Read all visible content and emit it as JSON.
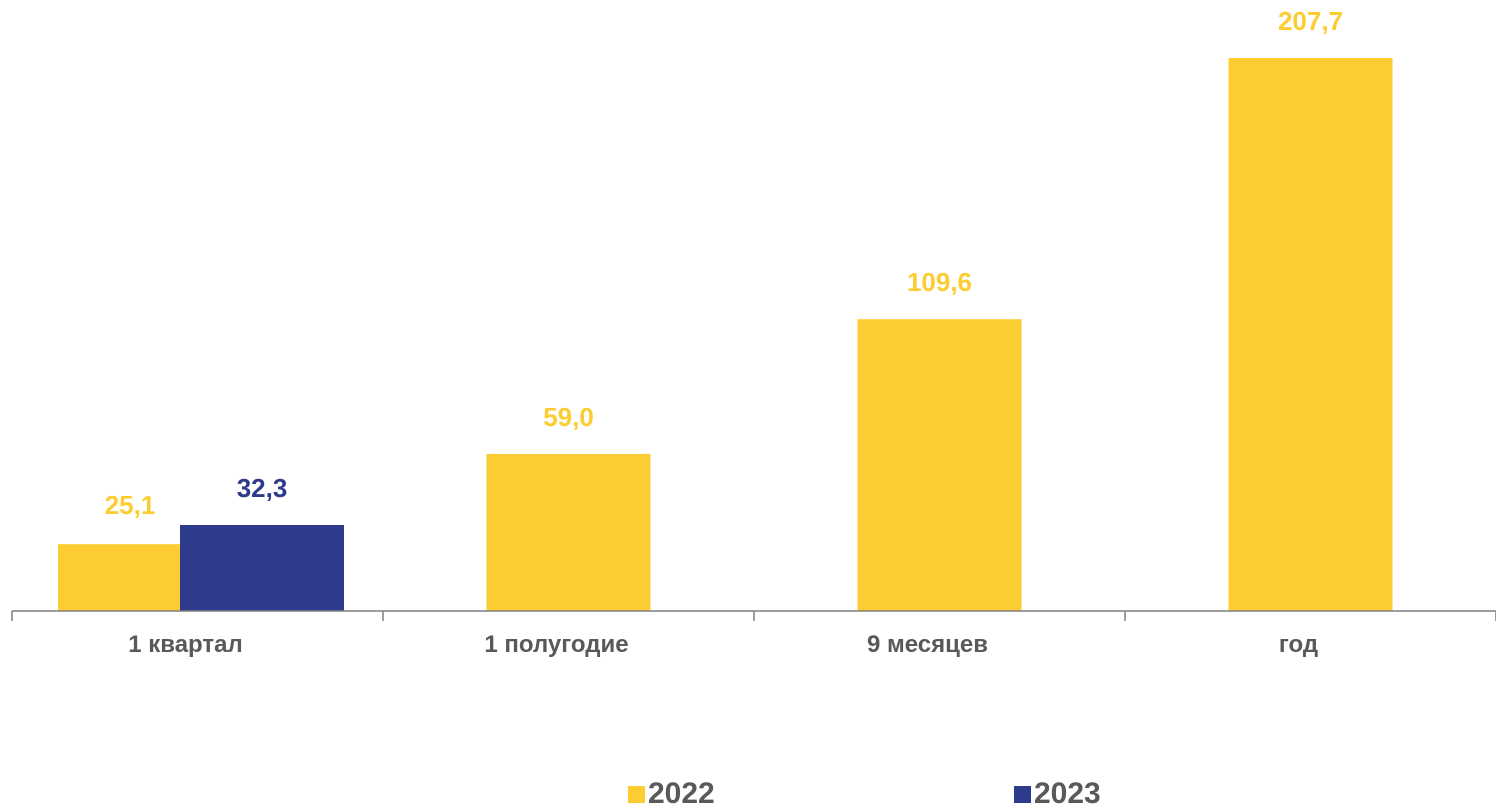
{
  "chart_data": {
    "type": "bar",
    "categories": [
      "1 квартал",
      "1 полугодие",
      "9 месяцев",
      "год"
    ],
    "series": [
      {
        "name": "2022",
        "color": "#FCCD33",
        "values": [
          25.1,
          59.0,
          109.6,
          207.7
        ],
        "labels": [
          "25,1",
          "59,0",
          "109,6",
          "207,7"
        ]
      },
      {
        "name": "2023",
        "color": "#2E3A8C",
        "values": [
          32.3,
          null,
          null,
          null
        ],
        "labels": [
          "32,3",
          "",
          "",
          ""
        ]
      }
    ],
    "title": "",
    "xlabel": "",
    "ylabel": "",
    "ylim": [
      0,
      207.7
    ],
    "grid": false,
    "legend": "bottom-center",
    "data_labels": true
  }
}
